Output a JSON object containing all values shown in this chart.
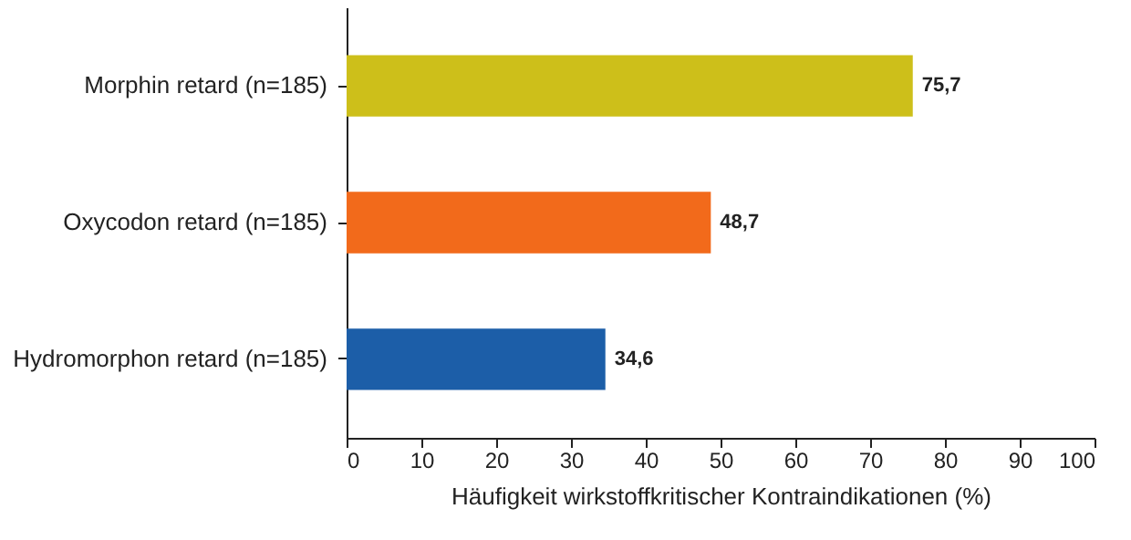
{
  "chart_data": {
    "type": "bar",
    "orientation": "horizontal",
    "xlabel": "Häufigkeit wirkstoffkritischer Kontraindikationen (%)",
    "categories": [
      "Morphin retard (n=185)",
      "Oxycodon retard (n=185)",
      "Hydromorphon retard (n=185)"
    ],
    "values": [
      75.7,
      48.7,
      34.6
    ],
    "value_labels": [
      "75,7",
      "48,7",
      "34,6"
    ],
    "colors": [
      "#cdbf1a",
      "#f26a1b",
      "#1c5ea8"
    ],
    "xlim": [
      0,
      100
    ],
    "xticks": [
      0,
      10,
      20,
      30,
      40,
      50,
      60,
      70,
      80,
      90,
      100
    ],
    "grid": false
  }
}
